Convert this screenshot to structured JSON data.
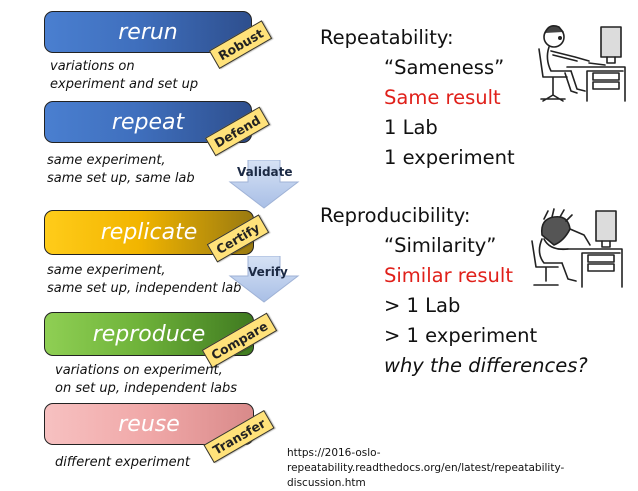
{
  "stages": [
    {
      "id": "rerun",
      "label": "rerun",
      "tag": "Robust",
      "desc_lines": [
        "variations on",
        "experiment and  set up"
      ]
    },
    {
      "id": "repeat",
      "label": "repeat",
      "tag": "Defend",
      "desc_lines": [
        "same experiment,",
        "same set up, same lab"
      ]
    },
    {
      "id": "replicate",
      "label": "replicate",
      "tag": "Certify",
      "desc_lines": [
        "same experiment,",
        "same set up, independent lab"
      ]
    },
    {
      "id": "reproduce",
      "label": "reproduce",
      "tag": "Compare",
      "desc_lines": [
        "variations on experiment,",
        "on set up, independent labs"
      ]
    },
    {
      "id": "reuse",
      "label": "reuse",
      "tag": "Transfer",
      "desc_lines": [
        "different experiment"
      ]
    }
  ],
  "arrows": {
    "validate": "Validate",
    "verify": "Verify"
  },
  "repeatability": {
    "heading": "Repeatability:",
    "lines": [
      "“Sameness”",
      "Same result",
      "1  Lab",
      "1 experiment"
    ]
  },
  "reproducibility": {
    "heading": "Reproducibility:",
    "lines": [
      "“Similarity”",
      "Similar result",
      "> 1 Lab",
      "> 1 experiment",
      "why the differences?"
    ]
  },
  "url_lines": [
    "https://2016-oslo-",
    "repeatability.readthedocs.org/en/latest/repeatability-discussion.htm"
  ],
  "colors": {
    "accent_red": "#e0201a",
    "blue": "#3f6fbd",
    "gold": "#f2b500",
    "green": "#6fb33a",
    "pink": "#f0a8a8"
  }
}
